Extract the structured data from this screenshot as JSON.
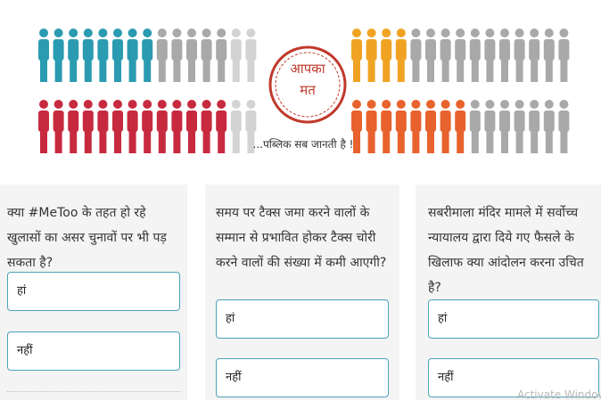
{
  "banner": {
    "stamp": [
      "आपका",
      "मत"
    ],
    "tagline": "...पब्लिक सब जानती है !"
  },
  "polls": [
    {
      "question": "क्या #MeToo के तहत हो रहे खुलासों का असर चुनावों पर भी पड़ सकता है?",
      "options": [
        "हां",
        "नहीं"
      ]
    },
    {
      "question": "समय पर टैक्स जमा करने वालों के सम्मान से प्रभावित होकर टैक्स चोरी करने वालों की संख्या में कमी आएगी?",
      "options": [
        "हां",
        "नहीं"
      ]
    },
    {
      "question": "सबरीमाला मंदिर मामले में सर्वोच्च न्यायालय द्वारा दिये गए फैसले के खिलाफ क्या आंदोलन करना उचित है?",
      "options": [
        "हां",
        "नहीं"
      ]
    }
  ],
  "watermark": "Activate Window"
}
